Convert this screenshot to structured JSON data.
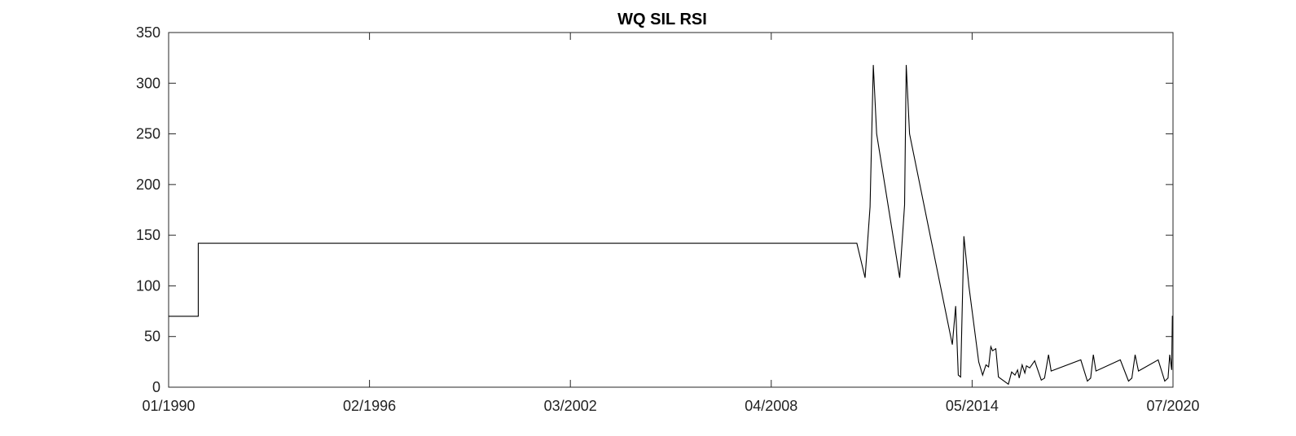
{
  "chart_data": {
    "type": "line",
    "title": "WQ SIL RSI",
    "xlabel": "",
    "ylabel": "",
    "xlim": [
      1990.0,
      2020.5
    ],
    "ylim": [
      0,
      350
    ],
    "x_ticks": [
      {
        "value": 1990.0,
        "label": "01/1990"
      },
      {
        "value": 1996.1,
        "label": "02/1996"
      },
      {
        "value": 2002.2,
        "label": "03/2002"
      },
      {
        "value": 2008.3,
        "label": "04/2008"
      },
      {
        "value": 2014.4,
        "label": "05/2014"
      },
      {
        "value": 2020.5,
        "label": "07/2020"
      }
    ],
    "y_ticks": [
      0,
      50,
      100,
      150,
      200,
      250,
      300,
      350
    ],
    "grid": false,
    "series": [
      {
        "name": "WQ SIL RSI",
        "color": "#000000",
        "points": [
          [
            1990.0,
            70
          ],
          [
            1990.9,
            70
          ],
          [
            1990.9,
            142
          ],
          [
            2010.9,
            142
          ],
          [
            2011.15,
            108
          ],
          [
            2011.3,
            178
          ],
          [
            2011.4,
            318
          ],
          [
            2011.5,
            250
          ],
          [
            2012.2,
            108
          ],
          [
            2012.35,
            180
          ],
          [
            2012.4,
            318
          ],
          [
            2012.5,
            250
          ],
          [
            2013.8,
            42
          ],
          [
            2013.9,
            80
          ],
          [
            2013.98,
            12
          ],
          [
            2014.05,
            10
          ],
          [
            2014.15,
            149
          ],
          [
            2014.3,
            100
          ],
          [
            2014.6,
            25
          ],
          [
            2014.72,
            12
          ],
          [
            2014.82,
            22
          ],
          [
            2014.9,
            20
          ],
          [
            2014.97,
            40
          ],
          [
            2015.02,
            36
          ],
          [
            2015.12,
            38
          ],
          [
            2015.2,
            10
          ],
          [
            2015.5,
            3
          ],
          [
            2015.6,
            15
          ],
          [
            2015.7,
            12
          ],
          [
            2015.78,
            17
          ],
          [
            2015.83,
            9
          ],
          [
            2015.92,
            22
          ],
          [
            2016.0,
            14
          ],
          [
            2016.05,
            21
          ],
          [
            2016.15,
            19
          ],
          [
            2016.3,
            26
          ],
          [
            2016.5,
            7
          ],
          [
            2016.6,
            9
          ],
          [
            2016.72,
            32
          ],
          [
            2016.8,
            16
          ],
          [
            2017.7,
            27
          ],
          [
            2017.9,
            6
          ],
          [
            2018.0,
            9
          ],
          [
            2018.08,
            32
          ],
          [
            2018.16,
            16
          ],
          [
            2018.9,
            27
          ],
          [
            2019.15,
            6
          ],
          [
            2019.25,
            9
          ],
          [
            2019.35,
            32
          ],
          [
            2019.45,
            16
          ],
          [
            2020.05,
            27
          ],
          [
            2020.25,
            6
          ],
          [
            2020.35,
            9
          ],
          [
            2020.4,
            32
          ],
          [
            2020.46,
            17
          ],
          [
            2020.48,
            70
          ],
          [
            2020.5,
            70
          ]
        ]
      }
    ]
  }
}
